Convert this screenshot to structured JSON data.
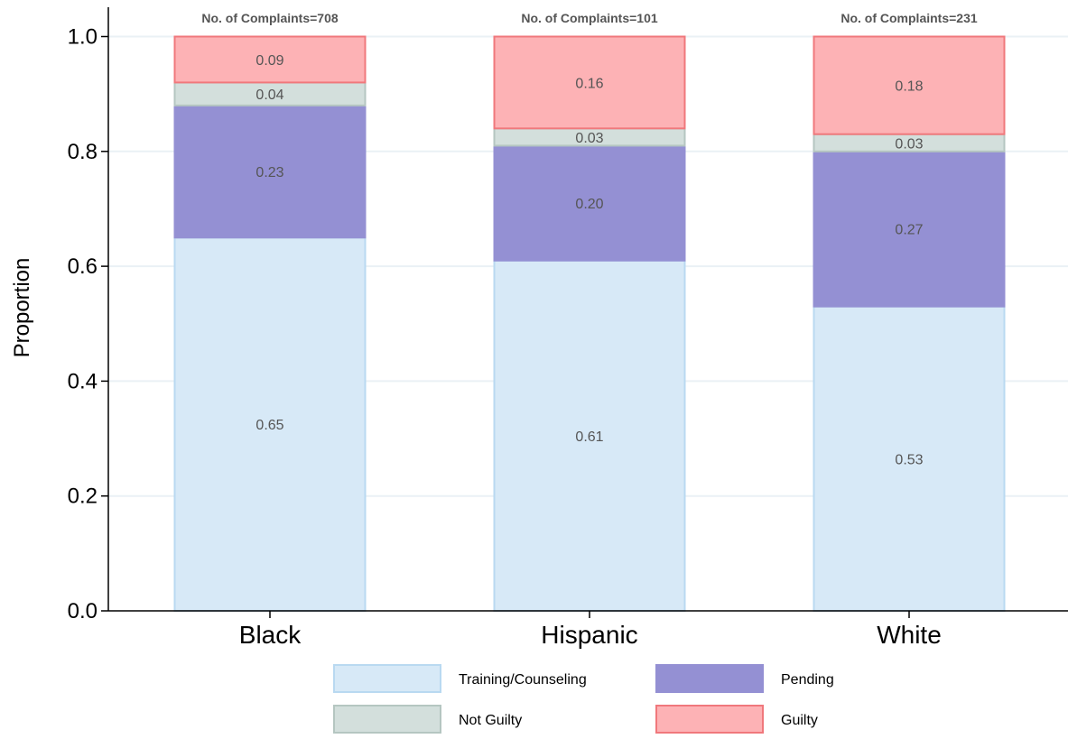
{
  "chart_data": {
    "type": "bar",
    "stacked": true,
    "categories": [
      "Black",
      "Hispanic",
      "White"
    ],
    "annotations": [
      "No. of Complaints=708",
      "No. of Complaints=101",
      "No. of Complaints=231"
    ],
    "series": [
      {
        "name": "Training/Counseling",
        "values": [
          0.65,
          0.61,
          0.53
        ],
        "labels": [
          "0.65",
          "0.61",
          "0.53"
        ],
        "color": "#d7e9f7",
        "stroke": "#b9d9f1"
      },
      {
        "name": "Pending",
        "values": [
          0.23,
          0.2,
          0.27
        ],
        "labels": [
          "0.23",
          "0.20",
          "0.27"
        ],
        "color": "#9490d3",
        "stroke": "#9490d3"
      },
      {
        "name": "Not Guilty",
        "values": [
          0.04,
          0.03,
          0.03
        ],
        "labels": [
          "0.04",
          "0.03",
          "0.03"
        ],
        "color": "#d3dfdc",
        "stroke": "#b5c6c1"
      },
      {
        "name": "Guilty",
        "values": [
          0.09,
          0.16,
          0.18
        ],
        "labels": [
          "0.09",
          "0.16",
          "0.18"
        ],
        "color": "#fdb2b5",
        "stroke": "#f0787c"
      }
    ],
    "xlabel": "",
    "ylabel": "Proportion",
    "ylim": [
      0,
      1.0
    ],
    "yticks": [
      "0.0",
      "0.2",
      "0.4",
      "0.6",
      "0.8",
      "1.0"
    ],
    "grid": true,
    "legend_position": "bottom"
  }
}
